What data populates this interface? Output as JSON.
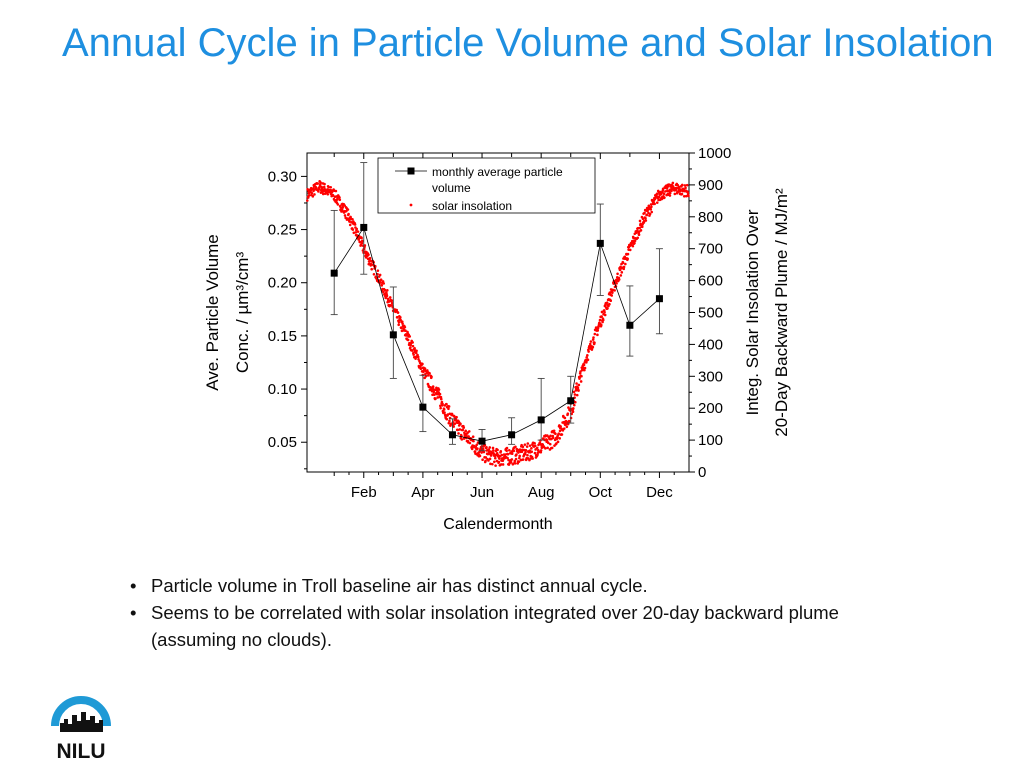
{
  "slide": {
    "title": "Annual Cycle in Particle Volume and Solar Insolation",
    "bullets": [
      "Particle volume in Troll baseline air has distinct annual cycle.",
      "Seems to be correlated with solar insolation integrated over 20-day backward plume (assuming no clouds)."
    ],
    "logo_text": "NILU"
  },
  "colors": {
    "title": "#1e8fe0",
    "series_particle": "#000000",
    "series_solar": "#ff0000",
    "logo": "#1f9ad6"
  },
  "chart_data": {
    "type": "scatter",
    "xlabel": "Calendermonth",
    "ylabel_left": [
      "Ave. Particle Volume",
      "Conc. / µm³/cm³"
    ],
    "ylabel_right": [
      "Integ. Solar Insolation Over",
      "20-Day Backward Plume / MJ/m²"
    ],
    "x_ticks": [
      {
        "month": 2,
        "label": "Feb"
      },
      {
        "month": 4,
        "label": "Apr"
      },
      {
        "month": 6,
        "label": "Jun"
      },
      {
        "month": 8,
        "label": "Aug"
      },
      {
        "month": 10,
        "label": "Oct"
      },
      {
        "month": 12,
        "label": "Dec"
      }
    ],
    "xlim": [
      0.08,
      13.0
    ],
    "ylim_left": [
      0.022,
      0.322
    ],
    "ylim_right": [
      0,
      1000
    ],
    "y_ticks_left": [
      "0.05",
      "0.10",
      "0.15",
      "0.20",
      "0.25",
      "0.30"
    ],
    "y_ticks_right": [
      "0",
      "100",
      "200",
      "300",
      "400",
      "500",
      "600",
      "700",
      "800",
      "900",
      "1000"
    ],
    "legend": {
      "placement": "top-center",
      "entries": [
        "monthly average particle volume",
        "solar insolation"
      ]
    },
    "series": [
      {
        "name": "monthly average particle volume",
        "axis": "left",
        "x": [
          1,
          2,
          3,
          4,
          5,
          6,
          7,
          8,
          9,
          10,
          11,
          12
        ],
        "y": [
          0.209,
          0.252,
          0.151,
          0.083,
          0.057,
          0.051,
          0.057,
          0.071,
          0.089,
          0.237,
          0.16,
          0.185
        ],
        "err_low": [
          0.17,
          0.208,
          0.11,
          0.06,
          0.048,
          0.042,
          0.048,
          0.052,
          0.068,
          0.188,
          0.131,
          0.152
        ],
        "err_high": [
          0.268,
          0.313,
          0.196,
          0.113,
          0.072,
          0.062,
          0.073,
          0.11,
          0.112,
          0.274,
          0.197,
          0.232
        ]
      },
      {
        "name": "solar insolation",
        "axis": "right",
        "x": [
          0.1,
          0.5,
          1.0,
          1.5,
          2.0,
          2.5,
          3.0,
          3.5,
          4.0,
          4.5,
          5.0,
          5.5,
          6.0,
          6.5,
          7.0,
          7.5,
          8.0,
          8.5,
          9.0,
          9.5,
          10.0,
          10.5,
          11.0,
          11.5,
          12.0,
          12.5,
          13.0
        ],
        "y": [
          870,
          895,
          870,
          800,
          700,
          610,
          510,
          420,
          320,
          240,
          160,
          110,
          60,
          45,
          50,
          60,
          80,
          110,
          190,
          350,
          470,
          590,
          700,
          800,
          870,
          890,
          880
        ]
      }
    ]
  }
}
